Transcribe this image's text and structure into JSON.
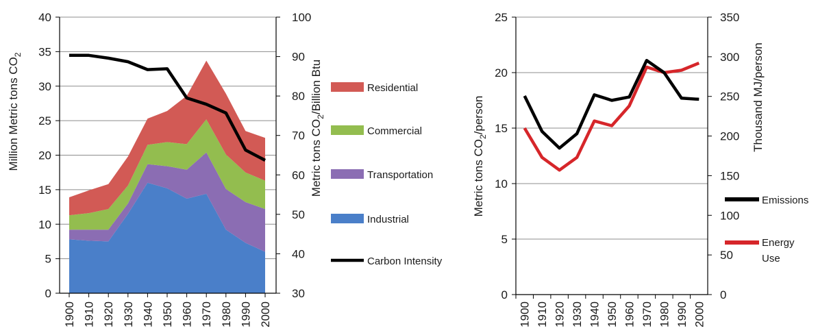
{
  "chart_data": [
    {
      "type": "area",
      "stacked": true,
      "x": [
        1900,
        1910,
        1920,
        1930,
        1940,
        1950,
        1960,
        1970,
        1980,
        1990,
        2000
      ],
      "x_tick_labels": [
        "1900",
        "1910",
        "1920",
        "1930",
        "1940",
        "1950",
        "1960",
        "1970",
        "1980",
        "1990",
        "2000"
      ],
      "series": [
        {
          "name": "Industrial",
          "color": "#4a7fc9",
          "values": [
            7.8,
            7.6,
            7.5,
            11.5,
            16.0,
            15.2,
            13.7,
            14.4,
            9.2,
            7.3,
            6.0
          ]
        },
        {
          "name": "Transportation",
          "color": "#8b6db3",
          "values": [
            1.4,
            1.6,
            1.7,
            1.5,
            2.7,
            3.2,
            4.2,
            6.0,
            5.9,
            5.9,
            6.2
          ]
        },
        {
          "name": "Commercial",
          "color": "#93bd4f",
          "values": [
            2.1,
            2.4,
            3.0,
            2.6,
            2.8,
            3.5,
            3.7,
            4.8,
            5.0,
            4.3,
            4.1
          ]
        },
        {
          "name": "Residential",
          "color": "#d25a55",
          "values": [
            2.6,
            3.3,
            3.6,
            4.2,
            3.8,
            4.5,
            7.0,
            8.5,
            8.8,
            6.0,
            6.2
          ]
        }
      ],
      "line_series": {
        "name": "Carbon Intensity",
        "color": "#000000",
        "axis": "right",
        "values": [
          90.3,
          90.3,
          89.6,
          88.7,
          86.7,
          86.9,
          79.5,
          77.9,
          75.7,
          66.3,
          63.7
        ]
      },
      "ylabel": "Million Metric tons CO2",
      "ylabel_main": "Million Metric tons CO",
      "ylabel_sub": "2",
      "ylim": [
        0,
        40
      ],
      "y_ticks": [
        "0",
        "5",
        "10",
        "15",
        "20",
        "25",
        "30",
        "35",
        "40"
      ],
      "y2label": "Metric tons CO2/Billion Btu",
      "y2label_a": "Metric tons CO",
      "y2label_sub": "2",
      "y2label_b": "/Billion Btu",
      "y2lim": [
        30,
        100
      ],
      "y2_ticks": [
        "30",
        "40",
        "50",
        "60",
        "70",
        "80",
        "90",
        "100"
      ],
      "legend": [
        "Residential",
        "Commercial",
        "Transportation",
        "Industrial",
        "Carbon Intensity"
      ],
      "legend_placement": "right",
      "grid": true
    },
    {
      "type": "line",
      "x": [
        1905,
        1915,
        1925,
        1935,
        1945,
        1955,
        1965,
        1975,
        1985,
        1995,
        2005
      ],
      "x_tick_labels": [
        "1900",
        "1910",
        "1920",
        "1930",
        "1940",
        "1950",
        "1960",
        "1970",
        "1980",
        "1990",
        "2000"
      ],
      "series": [
        {
          "name": "Emissions",
          "color": "#000000",
          "axis": "left",
          "values": [
            17.9,
            14.7,
            13.2,
            14.5,
            18.0,
            17.5,
            17.8,
            21.1,
            20.0,
            17.7,
            17.6
          ]
        },
        {
          "name": "Energy Use",
          "color": "#d6262a",
          "axis": "right",
          "values": [
            210,
            173,
            157,
            173,
            219,
            213,
            238,
            287,
            280,
            283,
            292
          ]
        }
      ],
      "ylabel": "Metric tons CO2/person",
      "ylabel_a": "Metric  tons  CO",
      "ylabel_sub": "2",
      "ylabel_b": "/person",
      "ylim": [
        0,
        25
      ],
      "y_ticks": [
        "0",
        "5",
        "10",
        "15",
        "20",
        "25"
      ],
      "y2label": "Thousand  MJ/person",
      "y2lim": [
        0,
        350
      ],
      "y2_ticks": [
        "0",
        "50",
        "100",
        "150",
        "200",
        "250",
        "300",
        "350"
      ],
      "legend": [
        "Emissions",
        "Energy Use"
      ],
      "legend_line2": "Use",
      "legend_energy_line1": "Energy",
      "legend_placement": "right",
      "grid": true
    }
  ]
}
